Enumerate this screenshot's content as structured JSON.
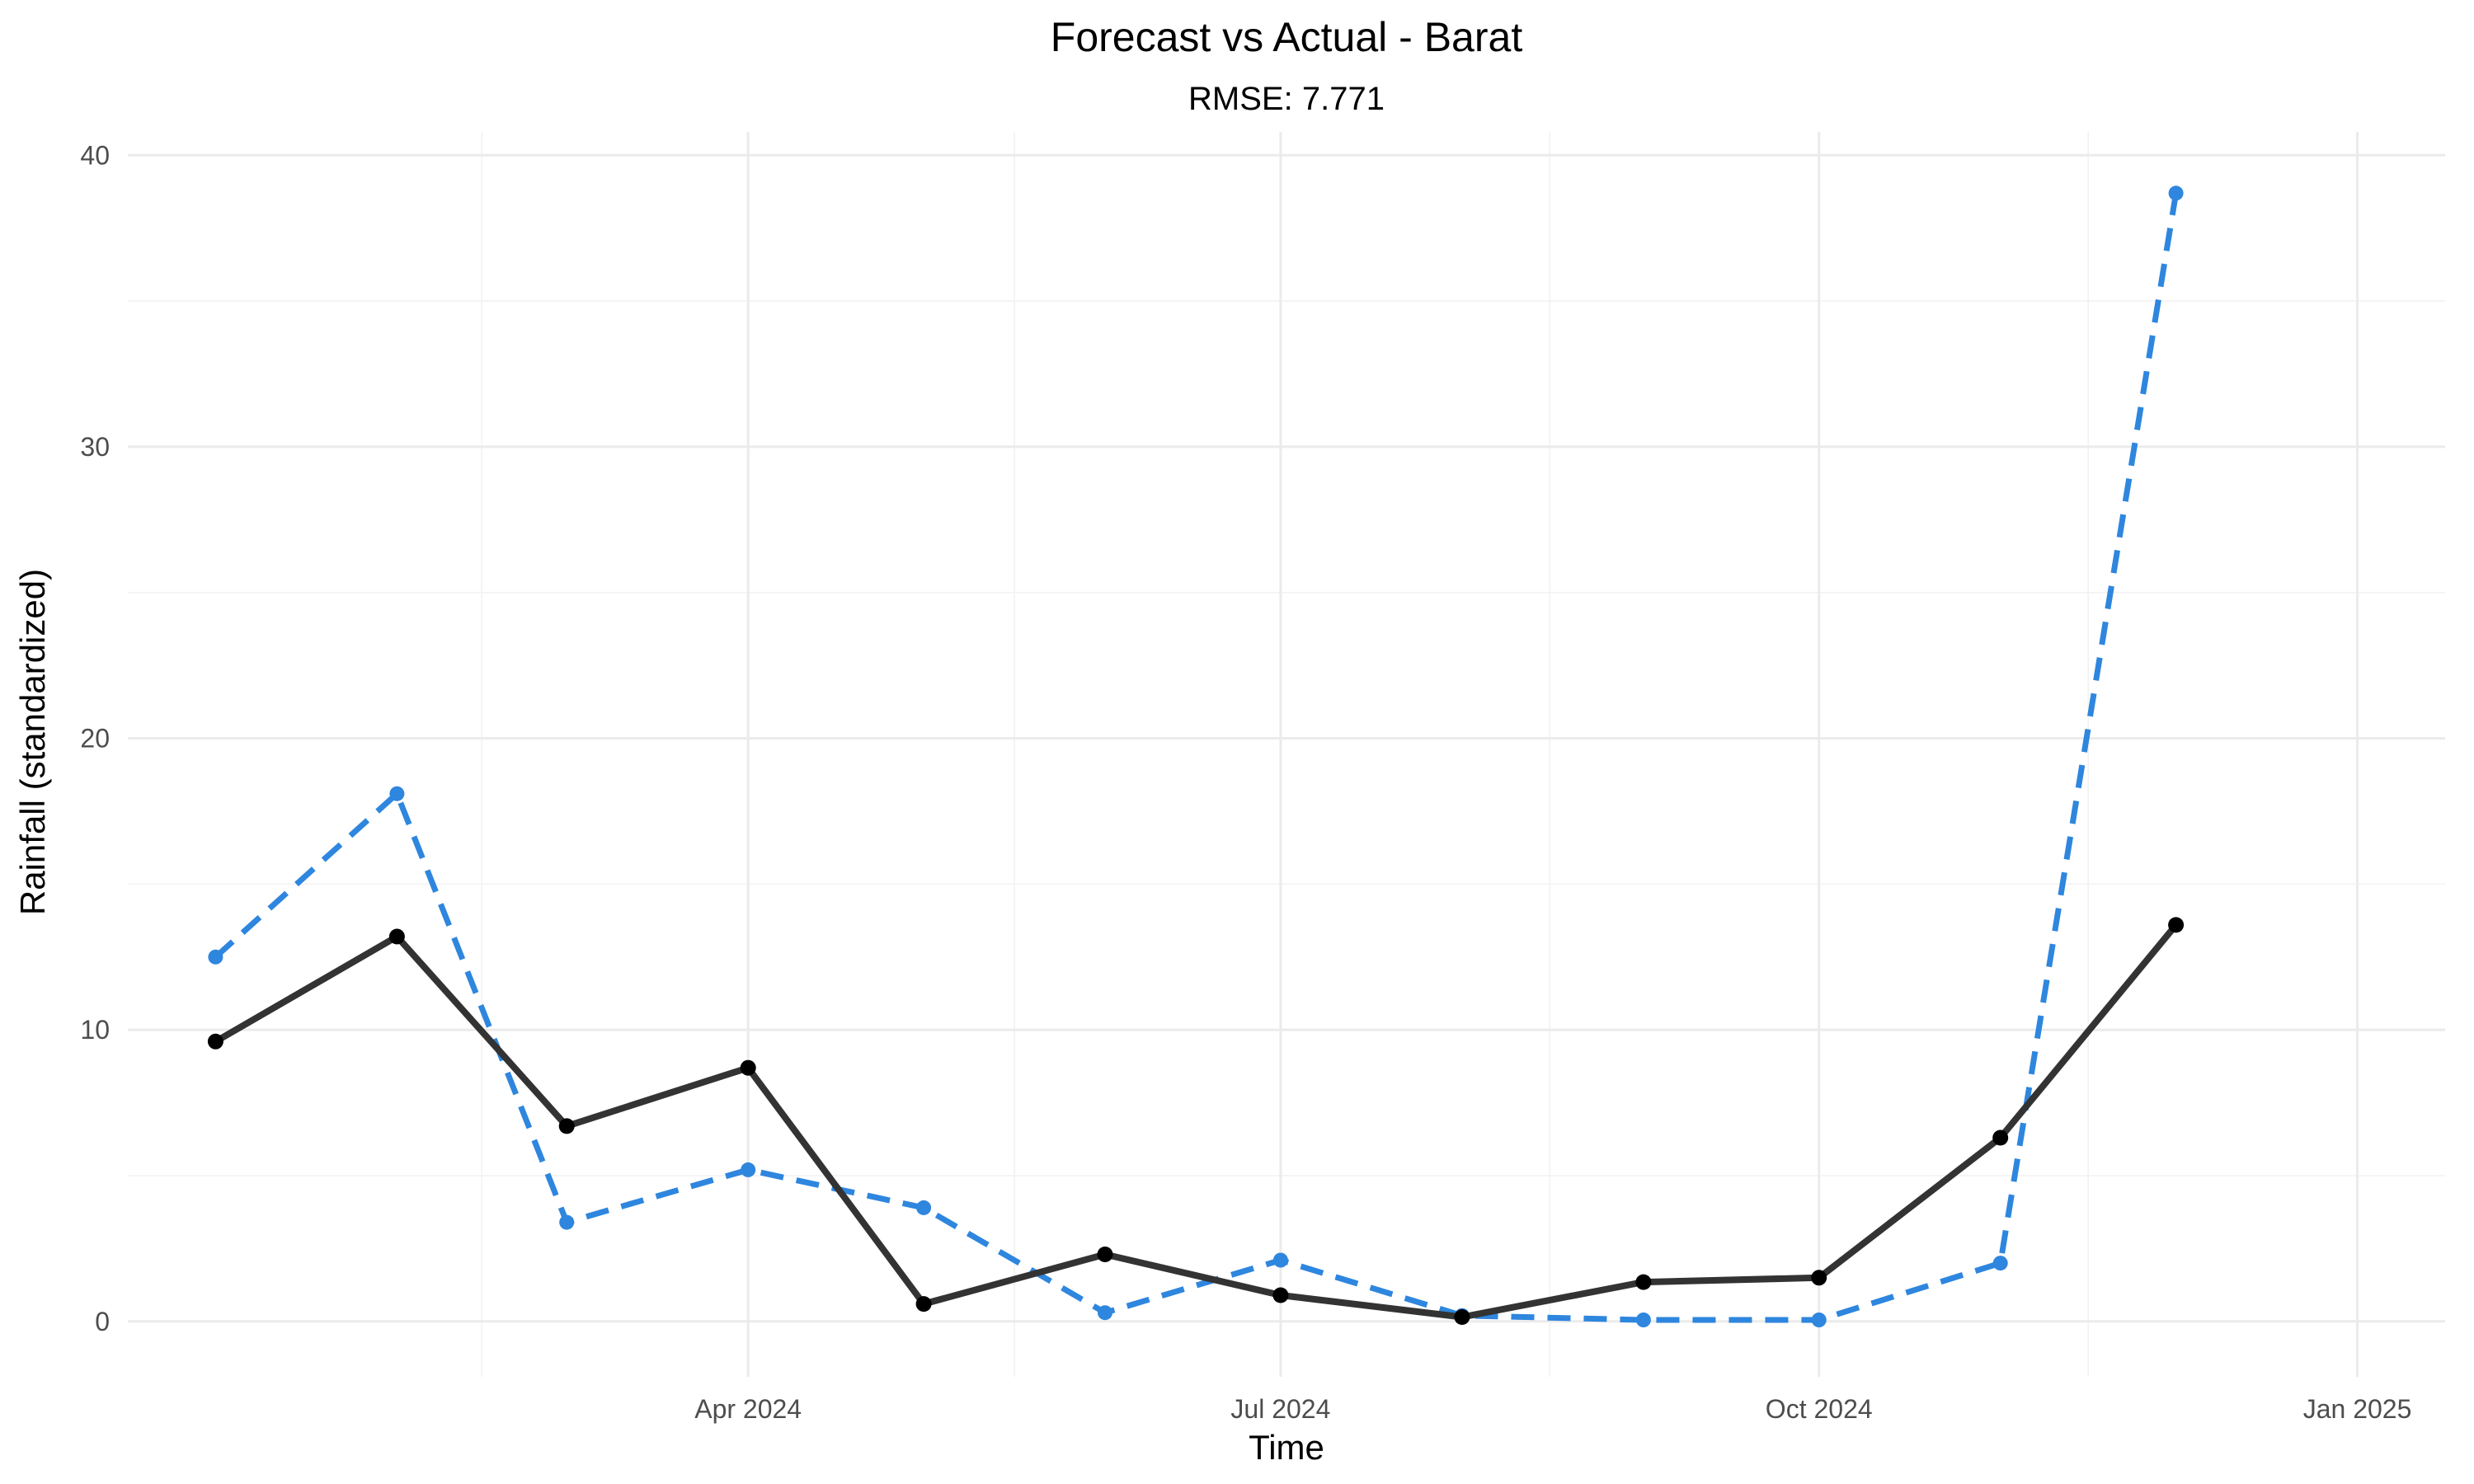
{
  "chart_data": {
    "type": "line",
    "title": "Forecast vs Actual - Barat",
    "subtitle": "RMSE: 7.771",
    "xlabel": "Time",
    "ylabel": "Rainfall (standardized)",
    "x": [
      "2024-01",
      "2024-02",
      "2024-03",
      "2024-04",
      "2024-05",
      "2024-06",
      "2024-07",
      "2024-08",
      "2024-09",
      "2024-10",
      "2024-11",
      "2024-12"
    ],
    "x_ticks": [
      {
        "value": "2024-04",
        "label": "Apr 2024"
      },
      {
        "value": "2024-07",
        "label": "Jul 2024"
      },
      {
        "value": "2024-10",
        "label": "Oct 2024"
      },
      {
        "value": "2025-01",
        "label": "Jan 2025"
      }
    ],
    "y_ticks": [
      0,
      10,
      20,
      30,
      40
    ],
    "ylim": [
      -1.9,
      40.8
    ],
    "grid": true,
    "legend": "none",
    "series": [
      {
        "style": "dashed",
        "color": "#2e86de",
        "values": [
          12.5,
          18.1,
          3.4,
          5.2,
          3.9,
          0.3,
          2.1,
          0.2,
          0.05,
          0.05,
          2.0,
          38.7
        ]
      },
      {
        "style": "solid",
        "color": "#333333",
        "values": [
          9.6,
          13.2,
          6.7,
          8.7,
          0.6,
          2.3,
          0.9,
          0.15,
          1.35,
          1.5,
          6.3,
          13.6
        ]
      }
    ]
  }
}
